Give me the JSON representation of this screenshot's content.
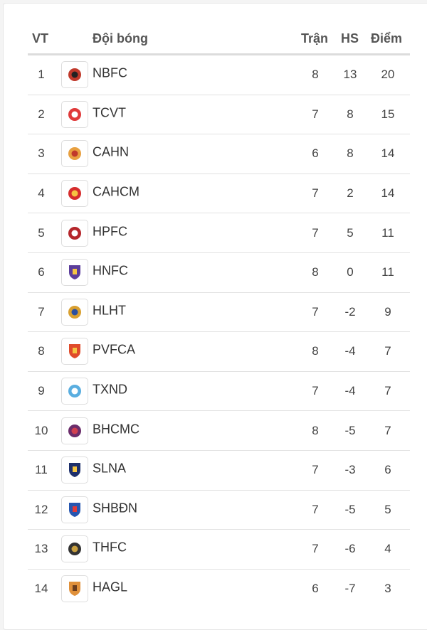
{
  "headers": {
    "pos": "VT",
    "team": "Đội bóng",
    "played": "Trận",
    "gd": "HS",
    "points": "Điểm"
  },
  "rows": [
    {
      "pos": "1",
      "team": "NBFC",
      "played": "8",
      "gd": "13",
      "points": "20",
      "logo_color": "#c0392b",
      "logo_color2": "#222222"
    },
    {
      "pos": "2",
      "team": "TCVT",
      "played": "7",
      "gd": "8",
      "points": "15",
      "logo_color": "#e03a3a",
      "logo_color2": "#ffffff"
    },
    {
      "pos": "3",
      "team": "CAHN",
      "played": "6",
      "gd": "8",
      "points": "14",
      "logo_color": "#e8a040",
      "logo_color2": "#c0392b"
    },
    {
      "pos": "4",
      "team": "CAHCM",
      "played": "7",
      "gd": "2",
      "points": "14",
      "logo_color": "#d62d2d",
      "logo_color2": "#f5c542"
    },
    {
      "pos": "5",
      "team": "HPFC",
      "played": "7",
      "gd": "5",
      "points": "11",
      "logo_color": "#b5262b",
      "logo_color2": "#ffffff"
    },
    {
      "pos": "6",
      "team": "HNFC",
      "played": "8",
      "gd": "0",
      "points": "11",
      "logo_color": "#5b3d9b",
      "logo_color2": "#f5c542"
    },
    {
      "pos": "7",
      "team": "HLHT",
      "played": "7",
      "gd": "-2",
      "points": "9",
      "logo_color": "#d9a030",
      "logo_color2": "#2a4fa0"
    },
    {
      "pos": "8",
      "team": "PVFCA",
      "played": "8",
      "gd": "-4",
      "points": "7",
      "logo_color": "#e04b2b",
      "logo_color2": "#f5c542"
    },
    {
      "pos": "9",
      "team": "TXND",
      "played": "7",
      "gd": "-4",
      "points": "7",
      "logo_color": "#5aaee0",
      "logo_color2": "#ffffff"
    },
    {
      "pos": "10",
      "team": "BHCMC",
      "played": "8",
      "gd": "-5",
      "points": "7",
      "logo_color": "#6b2d6b",
      "logo_color2": "#d04050"
    },
    {
      "pos": "11",
      "team": "SLNA",
      "played": "7",
      "gd": "-3",
      "points": "6",
      "logo_color": "#1d2f6b",
      "logo_color2": "#f5c542"
    },
    {
      "pos": "12",
      "team": "SHBĐN",
      "played": "7",
      "gd": "-5",
      "points": "5",
      "logo_color": "#2656b0",
      "logo_color2": "#e03a3a"
    },
    {
      "pos": "13",
      "team": "THFC",
      "played": "7",
      "gd": "-6",
      "points": "4",
      "logo_color": "#333333",
      "logo_color2": "#c9a040"
    },
    {
      "pos": "14",
      "team": "HAGL",
      "played": "6",
      "gd": "-7",
      "points": "3",
      "logo_color": "#e0903a",
      "logo_color2": "#6b3d1d"
    }
  ]
}
